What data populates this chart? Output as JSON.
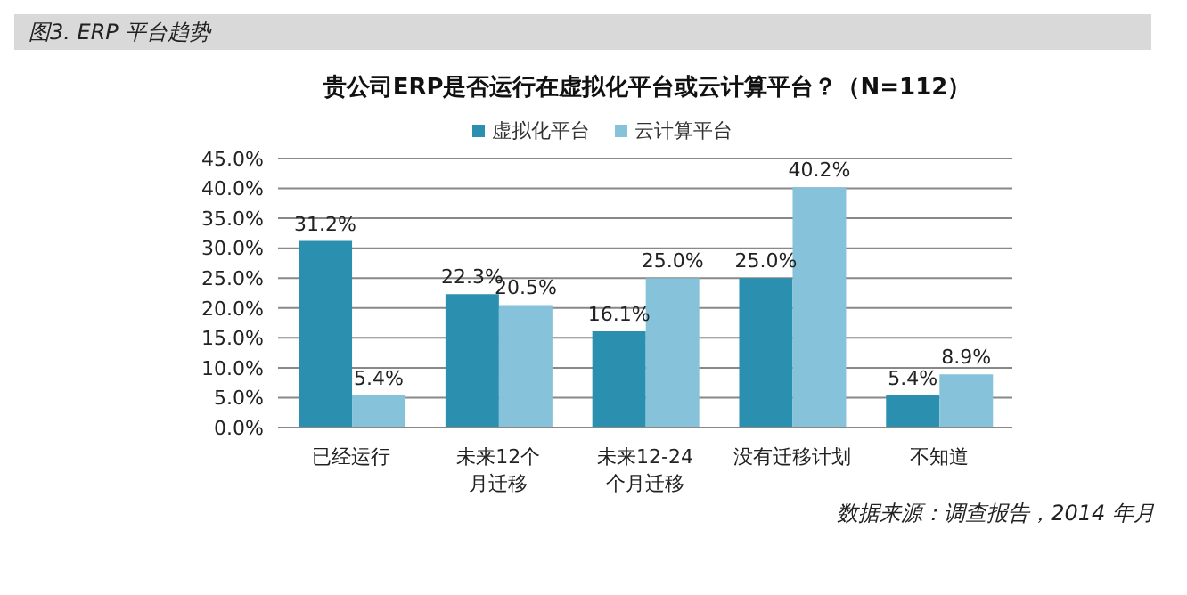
{
  "chart_data": {
    "type": "bar",
    "title": "图3. ERP 平台趋势",
    "subtitle": "贵公司ERP是否运行在虚拟化平台或云计算平台？（N=112）",
    "categories": [
      "已经运行",
      "未来12个月迁移",
      "未来12-24个月迁移",
      "没有迁移计划",
      "不知道"
    ],
    "series": [
      {
        "name": "虚拟化平台",
        "color": "#2b8fb0",
        "values": [
          31.2,
          22.3,
          16.1,
          25.0,
          5.4
        ],
        "value_labels": [
          "31.2%",
          "22.3%",
          "16.1%",
          "25.0%",
          "5.4%"
        ]
      },
      {
        "name": "云计算平台",
        "color": "#86c3da",
        "values": [
          5.4,
          20.5,
          25.0,
          40.2,
          8.9
        ],
        "value_labels": [
          "5.4%",
          "20.5%",
          "25.0%",
          "40.2%",
          "8.9%"
        ]
      }
    ],
    "ylim": [
      0,
      45
    ],
    "yticks": [
      {
        "value": 0,
        "label": "0.0%"
      },
      {
        "value": 5,
        "label": "5.0%"
      },
      {
        "value": 10,
        "label": "10.0%"
      },
      {
        "value": 15,
        "label": "15.0%"
      },
      {
        "value": 20,
        "label": "20.0%"
      },
      {
        "value": 25,
        "label": "25.0%"
      },
      {
        "value": 30,
        "label": "30.0%"
      },
      {
        "value": 35,
        "label": "35.0%"
      },
      {
        "value": 40,
        "label": "40.0%"
      },
      {
        "value": 45,
        "label": "45.0%"
      }
    ],
    "grid": "y",
    "legend": "top",
    "annotations": [
      "数据来源：调查报告，2014 年月"
    ]
  }
}
